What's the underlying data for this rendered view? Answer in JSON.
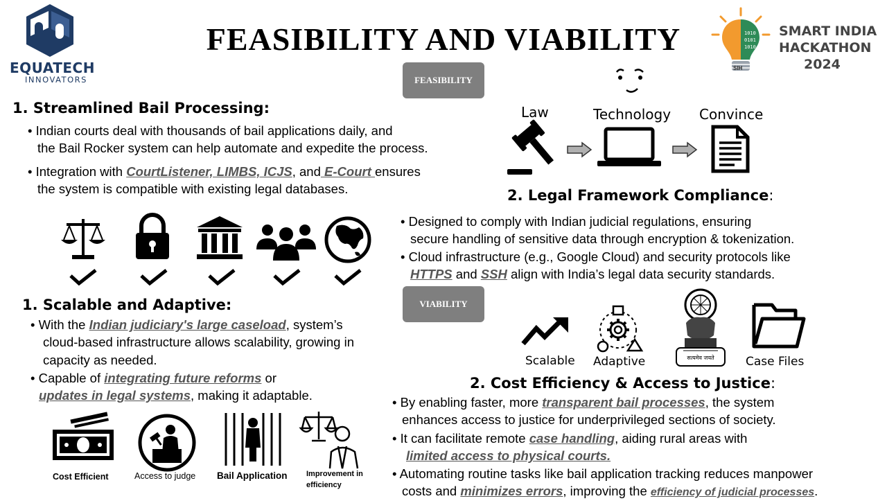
{
  "title": "FEASIBILITY AND VIABILITY",
  "brand": {
    "line1": "EQUATECH",
    "line2": "INNOVATORS"
  },
  "sih": {
    "line1": "SMART INDIA",
    "line2": "HACKATHON",
    "line3": "2024",
    "badge": "SIH"
  },
  "pills": {
    "feasibility": "FEASIBILITY",
    "viability": "VIABILITY"
  },
  "s1": {
    "heading": "1.  Streamlined Bail Processing:",
    "b1_l1": "• Indian courts deal with thousands of bail applications daily, and",
    "b1_l2": "the Bail Rocker system can help automate and expedite the process.",
    "b2_pre": "• Integration with ",
    "b2_link1": "CourtListener, LIMBS, ICJS",
    "b2_mid": ", and",
    "b2_link2": " E-Court ",
    "b2_post": "ensures",
    "b2_l2": "the system is compatible with existing legal databases."
  },
  "flow": {
    "law": "Law",
    "technology": "Technology",
    "convince": "Convince"
  },
  "s2": {
    "heading": "2. Legal Framework Compliance",
    "colon": ":",
    "b1_l1": "• Designed to comply with Indian judicial regulations, ensuring",
    "b1_l2": "secure handling of sensitive data through encryption & tokenization.",
    "b2_l1": "• Cloud infrastructure (e.g., Google Cloud) and security protocols like",
    "b2_link1": "HTTPS",
    "b2_and": " and ",
    "b2_link2": "SSH",
    "b2_post": " align with India’s legal data security standards."
  },
  "s3": {
    "heading": "1.  Scalable and Adaptive:",
    "b1_pre": "• With the ",
    "b1_link": "Indian judiciary's large caseload",
    "b1_post": ", system’s",
    "b1_l2": "cloud-based infrastructure allows scalability, growing in",
    "b1_l3": "capacity as needed.",
    "b2_pre": "• Capable of ",
    "b2_link1": "integrating future reforms",
    "b2_post": " or",
    "b2_link2": "updates in legal systems",
    "b2_post2": ", making it adaptable."
  },
  "viab_icons": {
    "scalable": "Scalable",
    "adaptive": "Adaptive",
    "emblem_text": "सत्यमेव जयते",
    "case_files": "Case Files"
  },
  "bottom_icons": {
    "cost": "Cost Efficient",
    "judge": "Access to judge",
    "bail": "Bail Application",
    "improve_l1": "Improvement in",
    "improve_l2": "efficiency"
  },
  "s4": {
    "heading": "2. Cost Efficiency & Access to Justice",
    "colon": ":",
    "b1_pre": "• By enabling faster, more ",
    "b1_link": "transparent bail processes",
    "b1_post": ", the system",
    "b1_l2": "enhances access to justice for underprivileged sections of society.",
    "b2_pre": "• It can facilitate remote ",
    "b2_link": "case handling",
    "b2_post": ", aiding rural areas with",
    "b2_link2": "limited access to physical courts.",
    "b3_l1": "• Automating routine tasks like bail application tracking reduces manpower",
    "b3_pre": "costs and ",
    "b3_link": "minimizes errors",
    "b3_mid": ", improving the ",
    "b3_link2": "efficiency of judicial processes",
    "b3_end": "."
  },
  "colors": {
    "brand_blue": "#1f3b64",
    "pill_gray": "#7f7f7f",
    "link_gray": "#555555",
    "sih_orange": "#f29a2e",
    "sih_green": "#2e8b57"
  }
}
